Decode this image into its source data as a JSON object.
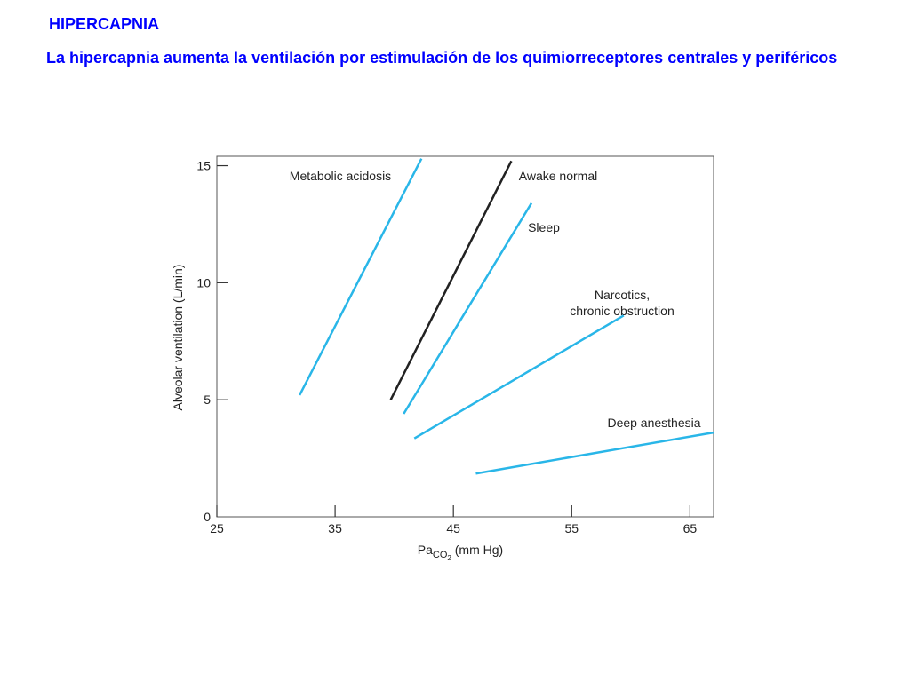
{
  "slide": {
    "title": "HIPERCAPNIA",
    "subtitle": "La hipercapnia aumenta la ventilación por estimulación de los quimiorreceptores centrales y periféricos"
  },
  "chart_data": {
    "type": "line",
    "xlabel_main": "Pa",
    "xlabel_sub": "CO",
    "xlabel_subsub": "2",
    "xlabel_unit": " (mm Hg)",
    "ylabel": "Alveolar ventilation (L/min)",
    "xlim": [
      25,
      67
    ],
    "ylim": [
      0,
      15.4
    ],
    "xticks": [
      25,
      35,
      45,
      55,
      65
    ],
    "yticks": [
      0,
      5,
      10,
      15
    ],
    "grid": false,
    "series": [
      {
        "name": "Metabolic acidosis",
        "color": "#29b6e8",
        "x": [
          32,
          42.3
        ],
        "y": [
          5.2,
          15.3
        ]
      },
      {
        "name": "Awake normal",
        "color": "#222222",
        "x": [
          39.7,
          49.9
        ],
        "y": [
          5.0,
          15.2
        ]
      },
      {
        "name": "Sleep",
        "color": "#29b6e8",
        "x": [
          40.8,
          51.6
        ],
        "y": [
          4.4,
          13.4
        ]
      },
      {
        "name": "Narcotics,\nchronic obstruction",
        "color": "#29b6e8",
        "x": [
          41.7,
          59.4
        ],
        "y": [
          3.35,
          8.6
        ]
      },
      {
        "name": "Deep anesthesia",
        "color": "#29b6e8",
        "x": [
          46.9,
          67
        ],
        "y": [
          1.85,
          3.6
        ]
      }
    ]
  }
}
